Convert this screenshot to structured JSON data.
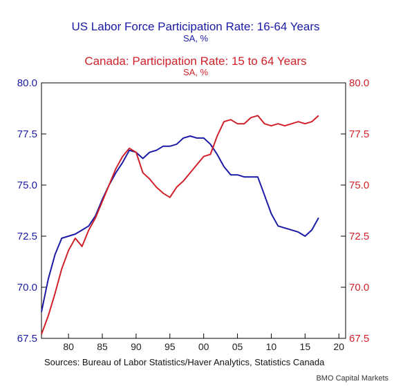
{
  "chart_data": {
    "type": "line",
    "titles": {
      "us_title": "US Labor Force Participation Rate: 16-64 Years",
      "us_subtitle": "SA, %",
      "ca_title": "Canada: Participation Rate: 15 to 64 Years",
      "ca_subtitle": "SA, %"
    },
    "x_ticks": [
      "80",
      "85",
      "90",
      "95",
      "00",
      "05",
      "10",
      "15",
      "20"
    ],
    "x_tick_years": [
      1980,
      1985,
      1990,
      1995,
      2000,
      2005,
      2010,
      2015,
      2020
    ],
    "xlim": [
      1976,
      2021
    ],
    "y_left": {
      "ticks": [
        "80.0",
        "77.5",
        "75.0",
        "72.5",
        "70.0",
        "67.5"
      ],
      "ylim": [
        67.5,
        80.0
      ]
    },
    "y_right": {
      "ticks": [
        "80.0",
        "77.5",
        "75.0",
        "72.5",
        "70.0",
        "67.5"
      ],
      "ylim": [
        67.5,
        80.0
      ]
    },
    "series": [
      {
        "name": "US Labor Force Participation Rate: 16-64 Years",
        "axis": "left",
        "color": "#1a1aa6",
        "x": [
          1976,
          1977,
          1978,
          1979,
          1980,
          1981,
          1982,
          1983,
          1984,
          1985,
          1986,
          1987,
          1988,
          1989,
          1990,
          1991,
          1992,
          1993,
          1994,
          1995,
          1996,
          1997,
          1998,
          1999,
          2000,
          2001,
          2002,
          2003,
          2004,
          2005,
          2006,
          2007,
          2008,
          2009,
          2010,
          2011,
          2012,
          2013,
          2014,
          2015,
          2016,
          2017
        ],
        "y": [
          68.8,
          70.4,
          71.6,
          72.4,
          72.5,
          72.6,
          72.8,
          73.0,
          73.5,
          74.3,
          75.0,
          75.6,
          76.1,
          76.7,
          76.6,
          76.3,
          76.6,
          76.7,
          76.9,
          76.9,
          77.0,
          77.3,
          77.4,
          77.3,
          77.3,
          77.0,
          76.5,
          75.9,
          75.5,
          75.5,
          75.4,
          75.4,
          75.4,
          74.5,
          73.6,
          73.0,
          72.9,
          72.8,
          72.7,
          72.5,
          72.8,
          73.4
        ]
      },
      {
        "name": "Canada: Participation Rate: 15 to 64 Years",
        "axis": "right",
        "color": "#d0202a",
        "x": [
          1976,
          1977,
          1978,
          1979,
          1980,
          1981,
          1982,
          1983,
          1984,
          1985,
          1986,
          1987,
          1988,
          1989,
          1990,
          1991,
          1992,
          1993,
          1994,
          1995,
          1996,
          1997,
          1998,
          1999,
          2000,
          2001,
          2002,
          2003,
          2004,
          2005,
          2006,
          2007,
          2008,
          2009,
          2010,
          2011,
          2012,
          2013,
          2014,
          2015,
          2016,
          2017
        ],
        "y": [
          67.7,
          68.6,
          69.7,
          70.9,
          71.8,
          72.4,
          72.0,
          72.8,
          73.4,
          74.2,
          75.0,
          75.8,
          76.4,
          76.8,
          76.6,
          75.6,
          75.3,
          74.9,
          74.6,
          74.4,
          74.9,
          75.2,
          75.6,
          76.0,
          76.4,
          76.5,
          77.4,
          78.1,
          78.2,
          78.0,
          78.0,
          78.3,
          78.4,
          78.0,
          77.9,
          78.0,
          77.9,
          78.0,
          78.1,
          78.0,
          78.1,
          78.4
        ]
      }
    ]
  },
  "source_note": "Sources:  Bureau of Labor Statistics/Haver Analytics, Statistics Canada",
  "credit": "BMO Capital Markets"
}
